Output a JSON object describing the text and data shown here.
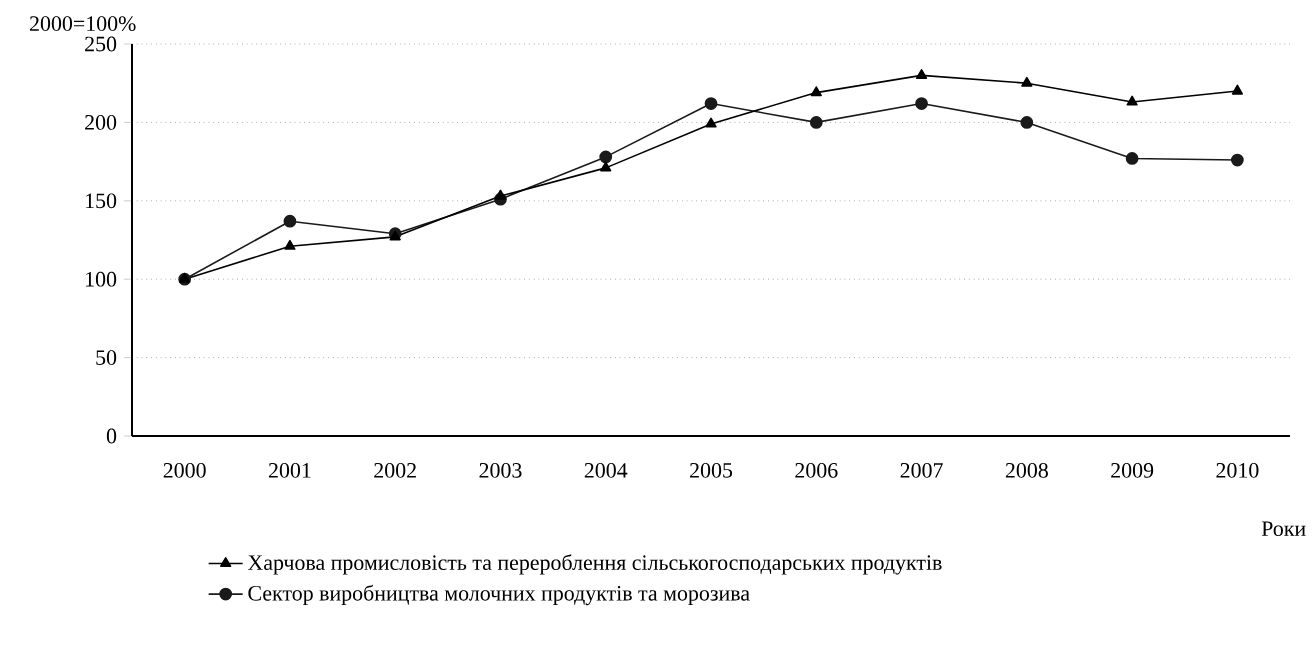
{
  "chart_data": {
    "type": "line",
    "ylabel": "2000=100%",
    "xlabel": "Роки",
    "categories": [
      "2000",
      "2001",
      "2002",
      "2003",
      "2004",
      "2005",
      "2006",
      "2007",
      "2008",
      "2009",
      "2010"
    ],
    "series": [
      {
        "name": "Харчова промисловість та перероблення сільськогосподарських продуктів",
        "color": "#000000",
        "marker": "triangle",
        "values": [
          100,
          121,
          127,
          153,
          171,
          199,
          219,
          230,
          225,
          213,
          220
        ]
      },
      {
        "name": "Сектор виробництва молочних продуктів та морозива",
        "color": "#1a1a1a",
        "marker": "circle",
        "values": [
          100,
          137,
          129,
          151,
          178,
          212,
          200,
          212,
          200,
          177,
          176
        ]
      }
    ],
    "ylim": [
      0,
      250
    ],
    "yticks": [
      0,
      50,
      100,
      150,
      200,
      250
    ],
    "grid": "y",
    "legend": "bottom",
    "line_style": "solid"
  }
}
